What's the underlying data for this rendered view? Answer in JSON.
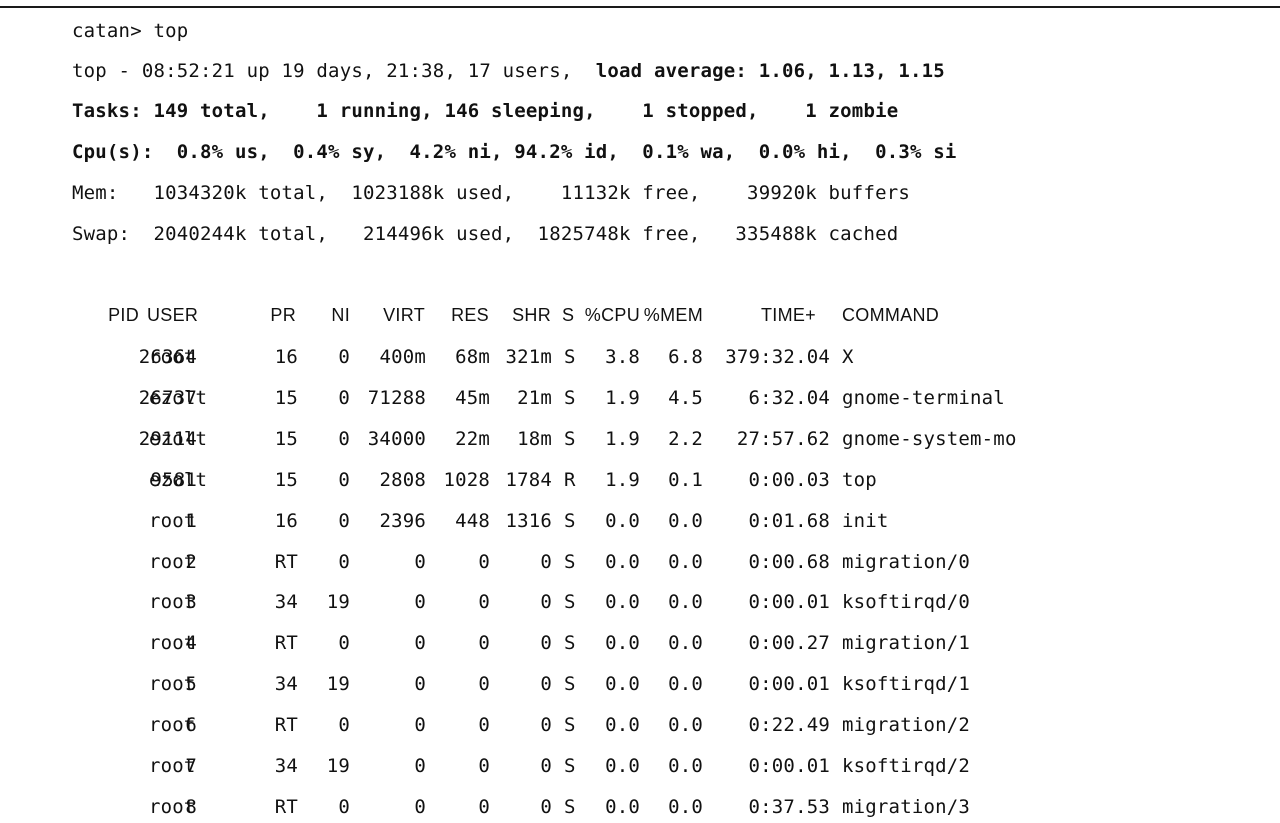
{
  "terminal": {
    "prompt": "catan> top",
    "uptime_line_plain": "top - 08:52:21 up 19 days, 21:38, 17 users,",
    "uptime_line_bold": "load average: 1.06, 1.13, 1.15",
    "tasks_line": "Tasks: 149 total,    1 running, 146 sleeping,    1 stopped,    1 zombie",
    "cpu_line": "Cpu(s):  0.8% us,  0.4% sy,  4.2% ni, 94.2% id,  0.1% wa,  0.0% hi,  0.3% si",
    "mem_line": "Mem:   1034320k total,  1023188k used,    11132k free,    39920k buffers",
    "swap_line": "Swap:  2040244k total,   214496k used,  1825748k free,   335488k cached"
  },
  "table": {
    "headers": [
      "PID",
      "USER",
      "PR",
      "NI",
      "VIRT",
      "RES",
      "SHR",
      "S",
      "%CPU",
      "%MEM",
      "TIME+",
      "COMMAND"
    ],
    "rows": [
      [
        "26364",
        "root",
        "16",
        "0",
        "400m",
        "68m",
        "321m",
        "S",
        "3.8",
        "6.8",
        "379:32.04",
        "X"
      ],
      [
        "26737",
        "ezolt",
        "15",
        "0",
        "71288",
        "45m",
        "21m",
        "S",
        "1.9",
        "4.5",
        "6:32.04",
        "gnome-terminal"
      ],
      [
        "29114",
        "ezolt",
        "15",
        "0",
        "34000",
        "22m",
        "18m",
        "S",
        "1.9",
        "2.2",
        "27:57.62",
        "gnome-system-mo"
      ],
      [
        "9581",
        "ezolt",
        "15",
        "0",
        "2808",
        "1028",
        "1784",
        "R",
        "1.9",
        "0.1",
        "0:00.03",
        "top"
      ],
      [
        "1",
        "root",
        "16",
        "0",
        "2396",
        "448",
        "1316",
        "S",
        "0.0",
        "0.0",
        "0:01.68",
        "init"
      ],
      [
        "2",
        "root",
        "RT",
        "0",
        "0",
        "0",
        "0",
        "S",
        "0.0",
        "0.0",
        "0:00.68",
        "migration/0"
      ],
      [
        "3",
        "root",
        "34",
        "19",
        "0",
        "0",
        "0",
        "S",
        "0.0",
        "0.0",
        "0:00.01",
        "ksoftirqd/0"
      ],
      [
        "4",
        "root",
        "RT",
        "0",
        "0",
        "0",
        "0",
        "S",
        "0.0",
        "0.0",
        "0:00.27",
        "migration/1"
      ],
      [
        "5",
        "root",
        "34",
        "19",
        "0",
        "0",
        "0",
        "S",
        "0.0",
        "0.0",
        "0:00.01",
        "ksoftirqd/1"
      ],
      [
        "6",
        "root",
        "RT",
        "0",
        "0",
        "0",
        "0",
        "S",
        "0.0",
        "0.0",
        "0:22.49",
        "migration/2"
      ],
      [
        "7",
        "root",
        "34",
        "19",
        "0",
        "0",
        "0",
        "S",
        "0.0",
        "0.0",
        "0:00.01",
        "ksoftirqd/2"
      ],
      [
        "8",
        "root",
        "RT",
        "0",
        "0",
        "0",
        "0",
        "S",
        "0.0",
        "0.0",
        "0:37.53",
        "migration/3"
      ]
    ]
  }
}
